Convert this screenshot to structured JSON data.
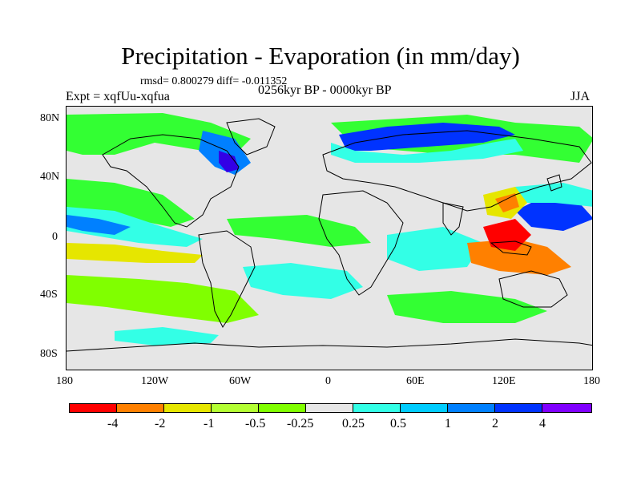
{
  "title": "Precipitation - Evaporation (in mm/day)",
  "stats": "rmsd= 0.800279 diff= -0.011352",
  "expt": "Expt = xqfUu-xqfua",
  "period": "0256kyr BP - 0000kyr BP",
  "season": "JJA",
  "lat_labels": [
    "80N",
    "40N",
    "0",
    "40S",
    "80S"
  ],
  "lon_labels": [
    "180",
    "120W",
    "60W",
    "0",
    "60E",
    "120E",
    "180"
  ],
  "colorbar": {
    "colors": [
      "#ff0000",
      "#ff8000",
      "#e6e600",
      "#b3ff33",
      "#80ff00",
      "#33ff33",
      "#e6e6e6",
      "#33ffe6",
      "#00ccff",
      "#0080ff",
      "#0033ff",
      "#3300e6",
      "#8000ff"
    ],
    "labels": [
      "-4",
      "-2",
      "-1",
      "-0.5",
      "-0.25",
      "0.25",
      "0.5",
      "1",
      "2",
      "4"
    ]
  },
  "map_colors": {
    "background": "#e6e6e6",
    "green": "#33ff33",
    "light_green": "#80ff00",
    "cyan": "#33ffe6",
    "light_blue": "#00ccff",
    "blue": "#0080ff",
    "dark_blue": "#0033ff",
    "purple": "#3300e6",
    "orange": "#ff8000",
    "yellow": "#e6e600",
    "red": "#ff0000"
  }
}
